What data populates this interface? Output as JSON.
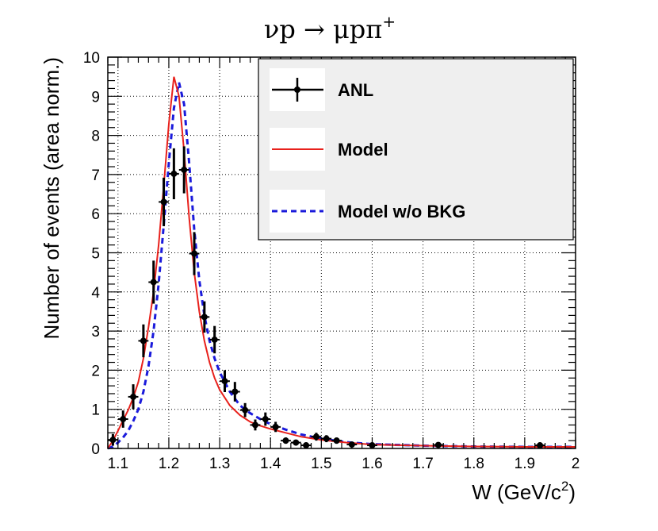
{
  "chart_data": {
    "type": "line",
    "title": "νp → μpπ⁺",
    "title_parts": {
      "main": "νp → μpπ",
      "sup": "+"
    },
    "xlabel": "W (GeV/c²)",
    "xlabel_parts": {
      "main": "W (GeV/c",
      "sup": "2",
      "tail": ")"
    },
    "ylabel": "Number of events (area norm.)",
    "xlim": [
      1.08,
      2.0
    ],
    "ylim": [
      0,
      10
    ],
    "xticks": [
      1.1,
      1.2,
      1.3,
      1.4,
      1.5,
      1.6,
      1.7,
      1.8,
      1.9,
      2.0
    ],
    "xtick_labels": [
      "1.1",
      "1.2",
      "1.3",
      "1.4",
      "1.5",
      "1.6",
      "1.7",
      "1.8",
      "1.9",
      "2"
    ],
    "yticks": [
      0,
      1,
      2,
      3,
      4,
      5,
      6,
      7,
      8,
      9,
      10
    ],
    "ytick_labels": [
      "0",
      "1",
      "2",
      "3",
      "4",
      "5",
      "6",
      "7",
      "8",
      "9",
      "10"
    ],
    "grid": true,
    "legend_position": "top-right",
    "series": [
      {
        "name": "ANL",
        "style": "points-with-errors",
        "color": "#000000",
        "bin_half_width": 0.01,
        "points": [
          {
            "x": 1.09,
            "y": 0.22,
            "err": 0.15
          },
          {
            "x": 1.11,
            "y": 0.75,
            "err": 0.22
          },
          {
            "x": 1.13,
            "y": 1.32,
            "err": 0.32
          },
          {
            "x": 1.15,
            "y": 2.75,
            "err": 0.42
          },
          {
            "x": 1.17,
            "y": 4.25,
            "err": 0.55
          },
          {
            "x": 1.19,
            "y": 6.3,
            "err": 0.62
          },
          {
            "x": 1.21,
            "y": 7.02,
            "err": 0.65
          },
          {
            "x": 1.23,
            "y": 7.12,
            "err": 0.6
          },
          {
            "x": 1.25,
            "y": 4.98,
            "err": 0.55
          },
          {
            "x": 1.27,
            "y": 3.36,
            "err": 0.4
          },
          {
            "x": 1.29,
            "y": 2.78,
            "err": 0.35
          },
          {
            "x": 1.31,
            "y": 1.72,
            "err": 0.28
          },
          {
            "x": 1.33,
            "y": 1.45,
            "err": 0.25
          },
          {
            "x": 1.35,
            "y": 0.98,
            "err": 0.18
          },
          {
            "x": 1.37,
            "y": 0.6,
            "err": 0.14
          },
          {
            "x": 1.39,
            "y": 0.75,
            "err": 0.17
          },
          {
            "x": 1.41,
            "y": 0.55,
            "err": 0.13
          },
          {
            "x": 1.43,
            "y": 0.2,
            "err": 0.08
          },
          {
            "x": 1.45,
            "y": 0.15,
            "err": 0.07
          },
          {
            "x": 1.47,
            "y": 0.08,
            "err": 0.05
          },
          {
            "x": 1.49,
            "y": 0.3,
            "err": 0.1
          },
          {
            "x": 1.51,
            "y": 0.25,
            "err": 0.09
          },
          {
            "x": 1.53,
            "y": 0.2,
            "err": 0.08
          },
          {
            "x": 1.56,
            "y": 0.1,
            "err": 0.05
          },
          {
            "x": 1.6,
            "y": 0.08,
            "err": 0.04
          },
          {
            "x": 1.73,
            "y": 0.09,
            "err": 0.04
          },
          {
            "x": 1.93,
            "y": 0.08,
            "err": 0.04
          }
        ]
      },
      {
        "name": "Model",
        "style": "solid-line",
        "color": "#e8211c",
        "points": [
          {
            "x": 1.08,
            "y": 0.0
          },
          {
            "x": 1.09,
            "y": 0.2
          },
          {
            "x": 1.1,
            "y": 0.45
          },
          {
            "x": 1.11,
            "y": 0.72
          },
          {
            "x": 1.12,
            "y": 0.98
          },
          {
            "x": 1.13,
            "y": 1.3
          },
          {
            "x": 1.14,
            "y": 1.7
          },
          {
            "x": 1.15,
            "y": 2.3
          },
          {
            "x": 1.16,
            "y": 3.1
          },
          {
            "x": 1.17,
            "y": 4.0
          },
          {
            "x": 1.18,
            "y": 5.2
          },
          {
            "x": 1.19,
            "y": 6.7
          },
          {
            "x": 1.2,
            "y": 8.3
          },
          {
            "x": 1.21,
            "y": 9.5
          },
          {
            "x": 1.22,
            "y": 9.0
          },
          {
            "x": 1.23,
            "y": 7.6
          },
          {
            "x": 1.24,
            "y": 5.9
          },
          {
            "x": 1.25,
            "y": 4.5
          },
          {
            "x": 1.26,
            "y": 3.5
          },
          {
            "x": 1.27,
            "y": 2.75
          },
          {
            "x": 1.28,
            "y": 2.2
          },
          {
            "x": 1.29,
            "y": 1.8
          },
          {
            "x": 1.3,
            "y": 1.5
          },
          {
            "x": 1.32,
            "y": 1.1
          },
          {
            "x": 1.34,
            "y": 0.85
          },
          {
            "x": 1.36,
            "y": 0.68
          },
          {
            "x": 1.38,
            "y": 0.58
          },
          {
            "x": 1.4,
            "y": 0.5
          },
          {
            "x": 1.43,
            "y": 0.4
          },
          {
            "x": 1.46,
            "y": 0.3
          },
          {
            "x": 1.5,
            "y": 0.22
          },
          {
            "x": 1.55,
            "y": 0.15
          },
          {
            "x": 1.6,
            "y": 0.1
          },
          {
            "x": 1.7,
            "y": 0.07
          },
          {
            "x": 1.8,
            "y": 0.05
          },
          {
            "x": 1.9,
            "y": 0.04
          },
          {
            "x": 2.0,
            "y": 0.04
          }
        ]
      },
      {
        "name": "Model w/o BKG",
        "style": "dashed-line",
        "color": "#1a1adb",
        "points": [
          {
            "x": 1.08,
            "y": 0.0
          },
          {
            "x": 1.09,
            "y": 0.05
          },
          {
            "x": 1.1,
            "y": 0.15
          },
          {
            "x": 1.11,
            "y": 0.28
          },
          {
            "x": 1.12,
            "y": 0.45
          },
          {
            "x": 1.13,
            "y": 0.7
          },
          {
            "x": 1.14,
            "y": 1.0
          },
          {
            "x": 1.15,
            "y": 1.45
          },
          {
            "x": 1.16,
            "y": 2.1
          },
          {
            "x": 1.17,
            "y": 3.0
          },
          {
            "x": 1.18,
            "y": 4.2
          },
          {
            "x": 1.19,
            "y": 5.7
          },
          {
            "x": 1.2,
            "y": 7.3
          },
          {
            "x": 1.21,
            "y": 8.7
          },
          {
            "x": 1.22,
            "y": 9.35
          },
          {
            "x": 1.23,
            "y": 8.8
          },
          {
            "x": 1.24,
            "y": 7.3
          },
          {
            "x": 1.25,
            "y": 5.6
          },
          {
            "x": 1.26,
            "y": 4.3
          },
          {
            "x": 1.27,
            "y": 3.4
          },
          {
            "x": 1.28,
            "y": 2.75
          },
          {
            "x": 1.29,
            "y": 2.3
          },
          {
            "x": 1.3,
            "y": 1.95
          },
          {
            "x": 1.32,
            "y": 1.45
          },
          {
            "x": 1.34,
            "y": 1.1
          },
          {
            "x": 1.36,
            "y": 0.9
          },
          {
            "x": 1.38,
            "y": 0.75
          },
          {
            "x": 1.4,
            "y": 0.62
          },
          {
            "x": 1.43,
            "y": 0.48
          },
          {
            "x": 1.46,
            "y": 0.36
          },
          {
            "x": 1.5,
            "y": 0.25
          },
          {
            "x": 1.55,
            "y": 0.16
          },
          {
            "x": 1.6,
            "y": 0.11
          },
          {
            "x": 1.7,
            "y": 0.07
          },
          {
            "x": 1.8,
            "y": 0.05
          },
          {
            "x": 1.9,
            "y": 0.04
          },
          {
            "x": 2.0,
            "y": 0.04
          }
        ]
      }
    ]
  },
  "legend": {
    "items": [
      {
        "label": "ANL",
        "kind": "marker-line",
        "color": "#000000"
      },
      {
        "label": "Model",
        "kind": "solid",
        "color": "#e8211c"
      },
      {
        "label": "Model w/o BKG",
        "kind": "dashed",
        "color": "#1a1adb"
      }
    ]
  }
}
